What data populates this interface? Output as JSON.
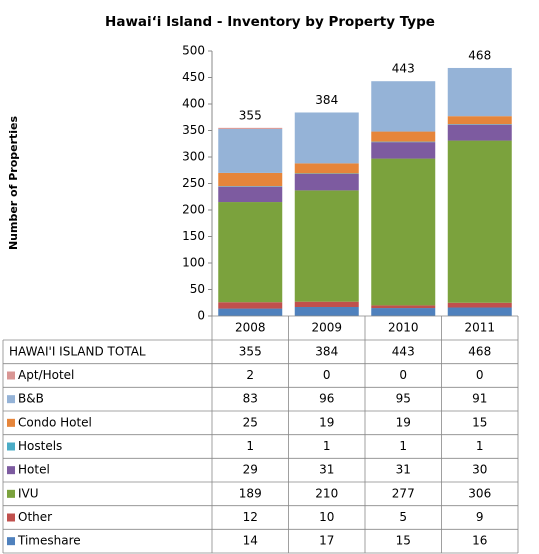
{
  "chart_data": {
    "type": "stacked-bar",
    "title": "Hawai‘i Island - Inventory by Property  Type",
    "y_axis_label": "Number of Properties",
    "categories": [
      "2008",
      "2009",
      "2010",
      "2011"
    ],
    "total_label": "HAWAI'I ISLAND TOTAL",
    "totals": [
      355,
      384,
      443,
      468
    ],
    "series": [
      {
        "name": "Apt/Hotel",
        "color": "#d99694",
        "values": [
          2,
          0,
          0,
          0
        ]
      },
      {
        "name": "B&B",
        "color": "#95b3d7",
        "values": [
          83,
          96,
          95,
          91
        ]
      },
      {
        "name": "Condo Hotel",
        "color": "#e6853a",
        "values": [
          25,
          19,
          19,
          15
        ]
      },
      {
        "name": "Hostels",
        "color": "#4bacc6",
        "values": [
          1,
          1,
          1,
          1
        ]
      },
      {
        "name": "Hotel",
        "color": "#7d5ba0",
        "values": [
          29,
          31,
          31,
          30
        ]
      },
      {
        "name": "IVU",
        "color": "#7ba23d",
        "values": [
          189,
          210,
          277,
          306
        ]
      },
      {
        "name": "Other",
        "color": "#c0504d",
        "values": [
          12,
          10,
          5,
          9
        ]
      },
      {
        "name": "Timeshare",
        "color": "#4f81bd",
        "values": [
          14,
          17,
          15,
          16
        ]
      }
    ],
    "ylim": [
      0,
      500
    ],
    "yticks": [
      0,
      50,
      100,
      150,
      200,
      250,
      300,
      350,
      400,
      450,
      500
    ]
  }
}
